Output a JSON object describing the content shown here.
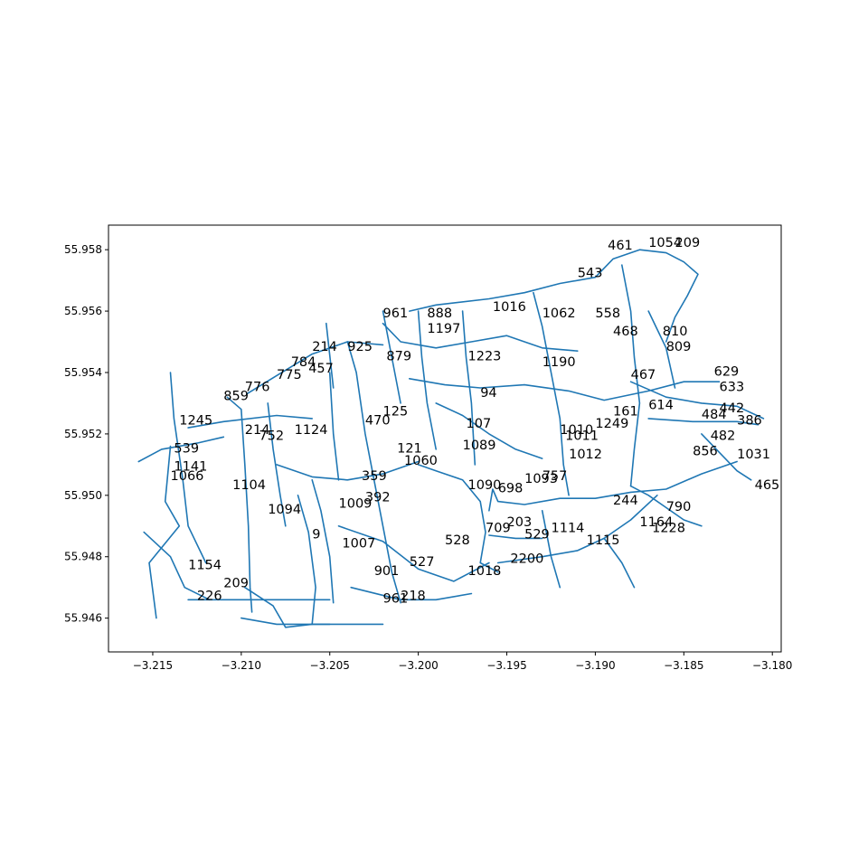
{
  "colors": {
    "road": "#1f77b4",
    "axes": "#000000",
    "background": "#ffffff"
  },
  "chart_data": {
    "type": "scatter",
    "title": "",
    "xlabel": "",
    "ylabel": "",
    "xlim": [
      -3.2175,
      -3.1795
    ],
    "ylim": [
      55.9449,
      55.9588
    ],
    "grid": false,
    "legend": "none",
    "x_ticks": [
      {
        "value": -3.215,
        "label": "−3.215"
      },
      {
        "value": -3.21,
        "label": "−3.210"
      },
      {
        "value": -3.205,
        "label": "−3.205"
      },
      {
        "value": -3.2,
        "label": "−3.200"
      },
      {
        "value": -3.195,
        "label": "−3.195"
      },
      {
        "value": -3.19,
        "label": "−3.190"
      },
      {
        "value": -3.185,
        "label": "−3.185"
      },
      {
        "value": -3.18,
        "label": "−3.180"
      }
    ],
    "y_ticks": [
      {
        "value": 55.946,
        "label": "55.946"
      },
      {
        "value": 55.948,
        "label": "55.948"
      },
      {
        "value": 55.95,
        "label": "55.950"
      },
      {
        "value": 55.952,
        "label": "55.952"
      },
      {
        "value": 55.954,
        "label": "55.954"
      },
      {
        "value": 55.956,
        "label": "55.956"
      },
      {
        "value": 55.958,
        "label": "55.958"
      }
    ],
    "roads": [
      [
        [
          -3.2158,
          55.9511
        ],
        [
          -3.2145,
          55.9515
        ],
        [
          -3.2125,
          55.9517
        ],
        [
          -3.211,
          55.9519
        ]
      ],
      [
        [
          -3.214,
          55.954
        ],
        [
          -3.2138,
          55.9525
        ],
        [
          -3.2133,
          55.9505
        ],
        [
          -3.213,
          55.949
        ],
        [
          -3.212,
          55.9478
        ]
      ],
      [
        [
          -3.214,
          55.9516
        ],
        [
          -3.2143,
          55.9498
        ],
        [
          -3.2135,
          55.949
        ],
        [
          -3.2152,
          55.9478
        ],
        [
          -3.2148,
          55.946
        ]
      ],
      [
        [
          -3.2155,
          55.9488
        ],
        [
          -3.214,
          55.948
        ],
        [
          -3.2132,
          55.947
        ],
        [
          -3.2118,
          55.9466
        ]
      ],
      [
        [
          -3.213,
          55.9522
        ],
        [
          -3.211,
          55.9524
        ],
        [
          -3.208,
          55.9526
        ],
        [
          -3.206,
          55.9525
        ]
      ],
      [
        [
          -3.2108,
          55.9532
        ],
        [
          -3.21,
          55.9528
        ],
        [
          -3.2098,
          55.951
        ],
        [
          -3.2096,
          55.949
        ],
        [
          -3.2095,
          55.947
        ],
        [
          -3.2094,
          55.9462
        ]
      ],
      [
        [
          -3.213,
          55.9466
        ],
        [
          -3.21,
          55.9466
        ],
        [
          -3.207,
          55.9466
        ],
        [
          -3.205,
          55.9466
        ]
      ],
      [
        [
          -3.2098,
          55.947
        ],
        [
          -3.2082,
          55.9464
        ],
        [
          -3.2075,
          55.9457
        ],
        [
          -3.206,
          55.9458
        ],
        [
          -3.202,
          55.9458
        ]
      ],
      [
        [
          -3.21,
          55.946
        ],
        [
          -3.208,
          55.9458
        ],
        [
          -3.205,
          55.9458
        ]
      ],
      [
        [
          -3.2097,
          55.9533
        ],
        [
          -3.208,
          55.9539
        ],
        [
          -3.206,
          55.9546
        ],
        [
          -3.204,
          55.955
        ],
        [
          -3.202,
          55.9549
        ]
      ],
      [
        [
          -3.2085,
          55.953
        ],
        [
          -3.2082,
          55.9515
        ],
        [
          -3.2078,
          55.95
        ],
        [
          -3.2075,
          55.949
        ]
      ],
      [
        [
          -3.208,
          55.951
        ],
        [
          -3.206,
          55.9506
        ],
        [
          -3.204,
          55.9505
        ],
        [
          -3.202,
          55.9507
        ],
        [
          -3.2,
          55.9511
        ]
      ],
      [
        [
          -3.206,
          55.9505
        ],
        [
          -3.2055,
          55.9495
        ],
        [
          -3.205,
          55.948
        ],
        [
          -3.2048,
          55.9465
        ]
      ],
      [
        [
          -3.2068,
          55.95
        ],
        [
          -3.2062,
          55.9488
        ],
        [
          -3.2058,
          55.947
        ],
        [
          -3.206,
          55.9458
        ]
      ],
      [
        [
          -3.205,
          55.954
        ],
        [
          -3.2048,
          55.952
        ],
        [
          -3.2045,
          55.9505
        ]
      ],
      [
        [
          -3.2052,
          55.9556
        ],
        [
          -3.2048,
          55.9535
        ]
      ],
      [
        [
          -3.204,
          55.955
        ],
        [
          -3.2035,
          55.954
        ],
        [
          -3.203,
          55.952
        ],
        [
          -3.2025,
          55.9505
        ],
        [
          -3.202,
          55.949
        ],
        [
          -3.2015,
          55.9475
        ],
        [
          -3.201,
          55.9465
        ]
      ],
      [
        [
          -3.2045,
          55.949
        ],
        [
          -3.202,
          55.9485
        ],
        [
          -3.2,
          55.9476
        ],
        [
          -3.198,
          55.9472
        ],
        [
          -3.196,
          55.9478
        ]
      ],
      [
        [
          -3.2038,
          55.947
        ],
        [
          -3.201,
          55.9466
        ],
        [
          -3.199,
          55.9466
        ],
        [
          -3.197,
          55.9468
        ]
      ],
      [
        [
          -3.202,
          55.9556
        ],
        [
          -3.201,
          55.955
        ],
        [
          -3.199,
          55.9548
        ],
        [
          -3.197,
          55.955
        ],
        [
          -3.195,
          55.9552
        ],
        [
          -3.193,
          55.9548
        ],
        [
          -3.191,
          55.9547
        ]
      ],
      [
        [
          -3.202,
          55.956
        ],
        [
          -3.2015,
          55.9545
        ],
        [
          -3.201,
          55.953
        ]
      ],
      [
        [
          -3.2,
          55.956
        ],
        [
          -3.1998,
          55.9545
        ],
        [
          -3.1995,
          55.953
        ],
        [
          -3.199,
          55.9515
        ]
      ],
      [
        [
          -3.1975,
          55.956
        ],
        [
          -3.1973,
          55.9545
        ],
        [
          -3.197,
          55.953
        ],
        [
          -3.1968,
          55.951
        ]
      ],
      [
        [
          -3.2005,
          55.9538
        ],
        [
          -3.1985,
          55.9536
        ],
        [
          -3.1965,
          55.9535
        ],
        [
          -3.194,
          55.9536
        ],
        [
          -3.1915,
          55.9534
        ],
        [
          -3.1895,
          55.9531
        ],
        [
          -3.187,
          55.9534
        ],
        [
          -3.185,
          55.9537
        ],
        [
          -3.183,
          55.9537
        ]
      ],
      [
        [
          -3.199,
          55.953
        ],
        [
          -3.1975,
          55.9526
        ],
        [
          -3.196,
          55.952
        ],
        [
          -3.1945,
          55.9515
        ],
        [
          -3.193,
          55.9512
        ]
      ],
      [
        [
          -3.2,
          55.951
        ],
        [
          -3.199,
          55.9508
        ],
        [
          -3.1975,
          55.9505
        ],
        [
          -3.1965,
          55.9498
        ],
        [
          -3.1962,
          55.9488
        ],
        [
          -3.1965,
          55.9478
        ],
        [
          -3.1955,
          55.9475
        ]
      ],
      [
        [
          -3.196,
          55.9495
        ],
        [
          -3.1958,
          55.9502
        ],
        [
          -3.1955,
          55.9498
        ],
        [
          -3.194,
          55.9497
        ],
        [
          -3.192,
          55.9499
        ],
        [
          -3.19,
          55.9499
        ],
        [
          -3.188,
          55.9501
        ],
        [
          -3.186,
          55.9502
        ],
        [
          -3.184,
          55.9507
        ],
        [
          -3.182,
          55.9511
        ]
      ],
      [
        [
          -3.1955,
          55.9478
        ],
        [
          -3.193,
          55.948
        ],
        [
          -3.191,
          55.9482
        ],
        [
          -3.1895,
          55.9486
        ],
        [
          -3.188,
          55.9492
        ],
        [
          -3.1865,
          55.95
        ]
      ],
      [
        [
          -3.2005,
          55.956
        ],
        [
          -3.199,
          55.9562
        ],
        [
          -3.196,
          55.9564
        ],
        [
          -3.194,
          55.9566
        ],
        [
          -3.192,
          55.9569
        ],
        [
          -3.19,
          55.9571
        ],
        [
          -3.189,
          55.9577
        ],
        [
          -3.1875,
          55.958
        ],
        [
          -3.186,
          55.9579
        ],
        [
          -3.185,
          55.9576
        ],
        [
          -3.1842,
          55.9572
        ],
        [
          -3.1848,
          55.9565
        ],
        [
          -3.1855,
          55.9558
        ],
        [
          -3.186,
          55.955
        ]
      ],
      [
        [
          -3.1935,
          55.9566
        ],
        [
          -3.193,
          55.9555
        ],
        [
          -3.1925,
          55.954
        ],
        [
          -3.192,
          55.9525
        ],
        [
          -3.1918,
          55.951
        ],
        [
          -3.1915,
          55.95
        ]
      ],
      [
        [
          -3.1885,
          55.9575
        ],
        [
          -3.188,
          55.956
        ],
        [
          -3.1878,
          55.9545
        ],
        [
          -3.1875,
          55.953
        ],
        [
          -3.1878,
          55.9515
        ],
        [
          -3.188,
          55.9503
        ]
      ],
      [
        [
          -3.187,
          55.956
        ],
        [
          -3.186,
          55.9548
        ],
        [
          -3.1855,
          55.9535
        ]
      ],
      [
        [
          -3.188,
          55.9537
        ],
        [
          -3.186,
          55.9532
        ],
        [
          -3.184,
          55.953
        ],
        [
          -3.182,
          55.9529
        ],
        [
          -3.1805,
          55.9525
        ]
      ],
      [
        [
          -3.187,
          55.9525
        ],
        [
          -3.1845,
          55.9524
        ],
        [
          -3.182,
          55.9524
        ],
        [
          -3.1808,
          55.9523
        ]
      ],
      [
        [
          -3.193,
          55.9495
        ],
        [
          -3.1925,
          55.948
        ],
        [
          -3.192,
          55.947
        ]
      ],
      [
        [
          -3.196,
          55.9487
        ],
        [
          -3.1945,
          55.9486
        ],
        [
          -3.193,
          55.9486
        ]
      ],
      [
        [
          -3.1895,
          55.9486
        ],
        [
          -3.1885,
          55.9478
        ],
        [
          -3.1878,
          55.947
        ]
      ],
      [
        [
          -3.188,
          55.9503
        ],
        [
          -3.187,
          55.95
        ],
        [
          -3.186,
          55.9496
        ],
        [
          -3.185,
          55.9492
        ],
        [
          -3.184,
          55.949
        ]
      ],
      [
        [
          -3.184,
          55.952
        ],
        [
          -3.183,
          55.9514
        ],
        [
          -3.182,
          55.9508
        ],
        [
          -3.1812,
          55.9505
        ]
      ]
    ],
    "labels": [
      {
        "x": -3.1958,
        "y": 55.956,
        "text": "1016"
      },
      {
        "x": -3.1995,
        "y": 55.9553,
        "text": "1197"
      },
      {
        "x": -3.1972,
        "y": 55.9544,
        "text": "1223"
      },
      {
        "x": -3.1972,
        "y": 55.9502,
        "text": "1090"
      },
      {
        "x": -3.1975,
        "y": 55.9515,
        "text": "1089"
      },
      {
        "x": -3.1973,
        "y": 55.9522,
        "text": "107"
      },
      {
        "x": -3.1985,
        "y": 55.9484,
        "text": "528"
      },
      {
        "x": -3.2005,
        "y": 55.9477,
        "text": "527"
      },
      {
        "x": -3.2008,
        "y": 55.951,
        "text": "1060"
      },
      {
        "x": -3.2012,
        "y": 55.9514,
        "text": "121"
      },
      {
        "x": -3.206,
        "y": 55.9547,
        "text": "214"
      },
      {
        "x": -3.204,
        "y": 55.9547,
        "text": "925"
      },
      {
        "x": -3.202,
        "y": 55.9558,
        "text": "961"
      },
      {
        "x": -3.1995,
        "y": 55.9558,
        "text": "888"
      },
      {
        "x": -3.2018,
        "y": 55.9544,
        "text": "879"
      },
      {
        "x": -3.2072,
        "y": 55.9542,
        "text": "784"
      },
      {
        "x": -3.2062,
        "y": 55.954,
        "text": "457"
      },
      {
        "x": -3.208,
        "y": 55.9538,
        "text": "775"
      },
      {
        "x": -3.2098,
        "y": 55.9534,
        "text": "776"
      },
      {
        "x": -3.211,
        "y": 55.9531,
        "text": "859"
      },
      {
        "x": -3.2135,
        "y": 55.9523,
        "text": "1245"
      },
      {
        "x": -3.2138,
        "y": 55.9514,
        "text": "539"
      },
      {
        "x": -3.214,
        "y": 55.9505,
        "text": "1066"
      },
      {
        "x": -3.2138,
        "y": 55.9508,
        "text": "1141"
      },
      {
        "x": -3.213,
        "y": 55.9476,
        "text": "1154"
      },
      {
        "x": -3.2125,
        "y": 55.9466,
        "text": "226"
      },
      {
        "x": -3.211,
        "y": 55.947,
        "text": "209"
      },
      {
        "x": -3.2105,
        "y": 55.9502,
        "text": "1104"
      },
      {
        "x": -3.2085,
        "y": 55.9494,
        "text": "1094"
      },
      {
        "x": -3.2098,
        "y": 55.952,
        "text": "214"
      },
      {
        "x": -3.209,
        "y": 55.9518,
        "text": "752"
      },
      {
        "x": -3.207,
        "y": 55.952,
        "text": "1124"
      },
      {
        "x": -3.2032,
        "y": 55.9505,
        "text": "359"
      },
      {
        "x": -3.203,
        "y": 55.9498,
        "text": "392"
      },
      {
        "x": -3.2045,
        "y": 55.9496,
        "text": "1009"
      },
      {
        "x": -3.2025,
        "y": 55.9474,
        "text": "901"
      },
      {
        "x": -3.202,
        "y": 55.9465,
        "text": "961"
      },
      {
        "x": -3.201,
        "y": 55.9466,
        "text": "218"
      },
      {
        "x": -3.203,
        "y": 55.9523,
        "text": "470"
      },
      {
        "x": -3.202,
        "y": 55.9526,
        "text": "125"
      },
      {
        "x": -3.1965,
        "y": 55.9532,
        "text": "94"
      },
      {
        "x": -3.194,
        "y": 55.9504,
        "text": "1093"
      },
      {
        "x": -3.193,
        "y": 55.9505,
        "text": "757"
      },
      {
        "x": -3.1955,
        "y": 55.9501,
        "text": "698"
      },
      {
        "x": -3.195,
        "y": 55.949,
        "text": "203"
      },
      {
        "x": -3.1962,
        "y": 55.9488,
        "text": "709"
      },
      {
        "x": -3.194,
        "y": 55.9486,
        "text": "529"
      },
      {
        "x": -3.1925,
        "y": 55.9488,
        "text": "1114"
      },
      {
        "x": -3.1905,
        "y": 55.9484,
        "text": "1115"
      },
      {
        "x": -3.1875,
        "y": 55.949,
        "text": "1164"
      },
      {
        "x": -3.189,
        "y": 55.9497,
        "text": "244"
      },
      {
        "x": -3.186,
        "y": 55.9495,
        "text": "790"
      },
      {
        "x": -3.1868,
        "y": 55.9488,
        "text": "1228"
      },
      {
        "x": -3.1915,
        "y": 55.9512,
        "text": "1012"
      },
      {
        "x": -3.1917,
        "y": 55.9518,
        "text": "1011"
      },
      {
        "x": -3.192,
        "y": 55.952,
        "text": "1010"
      },
      {
        "x": -3.19,
        "y": 55.9522,
        "text": "1249"
      },
      {
        "x": -3.189,
        "y": 55.9526,
        "text": "161"
      },
      {
        "x": -3.187,
        "y": 55.9528,
        "text": "614"
      },
      {
        "x": -3.184,
        "y": 55.9525,
        "text": "484"
      },
      {
        "x": -3.182,
        "y": 55.9523,
        "text": "386"
      },
      {
        "x": -3.183,
        "y": 55.9527,
        "text": "442"
      },
      {
        "x": -3.1835,
        "y": 55.9518,
        "text": "482"
      },
      {
        "x": -3.1845,
        "y": 55.9513,
        "text": "856"
      },
      {
        "x": -3.182,
        "y": 55.9512,
        "text": "1031"
      },
      {
        "x": -3.181,
        "y": 55.9502,
        "text": "465"
      },
      {
        "x": -3.183,
        "y": 55.9534,
        "text": "633"
      },
      {
        "x": -3.1833,
        "y": 55.9539,
        "text": "629"
      },
      {
        "x": -3.186,
        "y": 55.9547,
        "text": "809"
      },
      {
        "x": -3.1862,
        "y": 55.9552,
        "text": "810"
      },
      {
        "x": -3.189,
        "y": 55.9552,
        "text": "468"
      },
      {
        "x": -3.19,
        "y": 55.9558,
        "text": "558"
      },
      {
        "x": -3.191,
        "y": 55.9571,
        "text": "543"
      },
      {
        "x": -3.1893,
        "y": 55.958,
        "text": "461"
      },
      {
        "x": -3.187,
        "y": 55.9581,
        "text": "1054"
      },
      {
        "x": -3.1855,
        "y": 55.9581,
        "text": "209"
      },
      {
        "x": -3.188,
        "y": 55.9538,
        "text": "467"
      },
      {
        "x": -3.193,
        "y": 55.9558,
        "text": "1062"
      },
      {
        "x": -3.193,
        "y": 55.9542,
        "text": "1190"
      },
      {
        "x": -3.2043,
        "y": 55.9483,
        "text": "1007"
      },
      {
        "x": -3.206,
        "y": 55.9486,
        "text": "9"
      },
      {
        "x": -3.1948,
        "y": 55.9478,
        "text": "2200"
      },
      {
        "x": -3.1972,
        "y": 55.9474,
        "text": "1018"
      }
    ]
  }
}
